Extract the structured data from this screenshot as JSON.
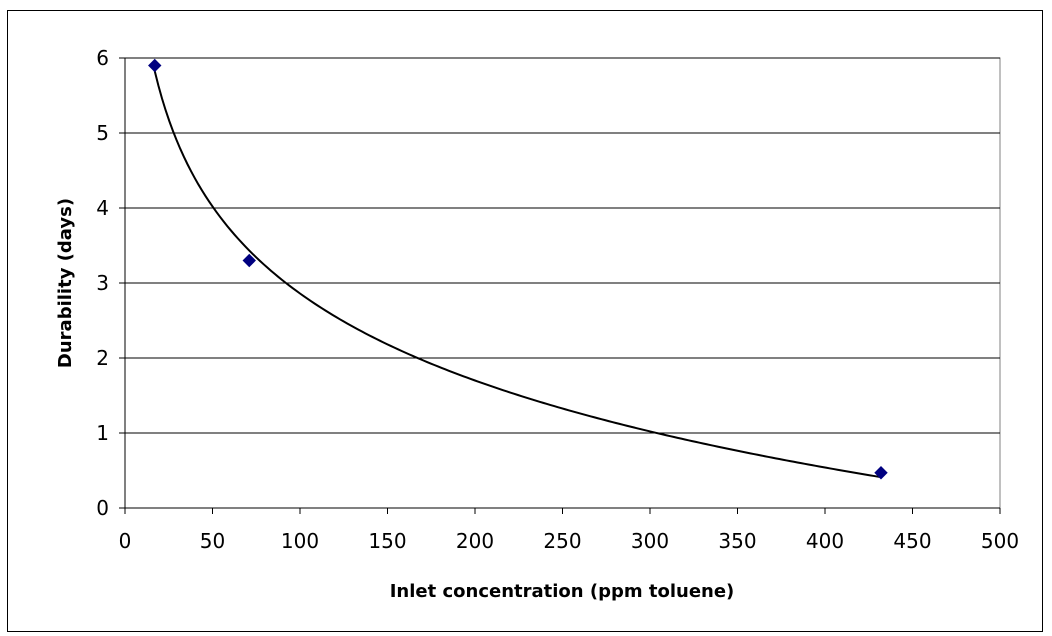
{
  "chart_data": {
    "type": "scatter",
    "title": "",
    "xlabel": "Inlet concentration (ppm toluene)",
    "ylabel": "Durability (days)",
    "xlim": [
      0,
      500
    ],
    "ylim": [
      0,
      6
    ],
    "x_ticks": [
      "0",
      "50",
      "100",
      "150",
      "200",
      "250",
      "300",
      "350",
      "400",
      "450",
      "500"
    ],
    "y_ticks": [
      "0",
      "1",
      "2",
      "3",
      "4",
      "5",
      "6"
    ],
    "grid": "horizontal",
    "legend": "none",
    "series": [
      {
        "x": [
          17,
          71,
          432
        ],
        "y": [
          5.9,
          3.3,
          0.47
        ],
        "marker": "diamond",
        "color": "#000080"
      }
    ],
    "trendline": {
      "type": "logarithmic",
      "color": "#000000",
      "x_range": [
        17,
        432
      ]
    }
  }
}
